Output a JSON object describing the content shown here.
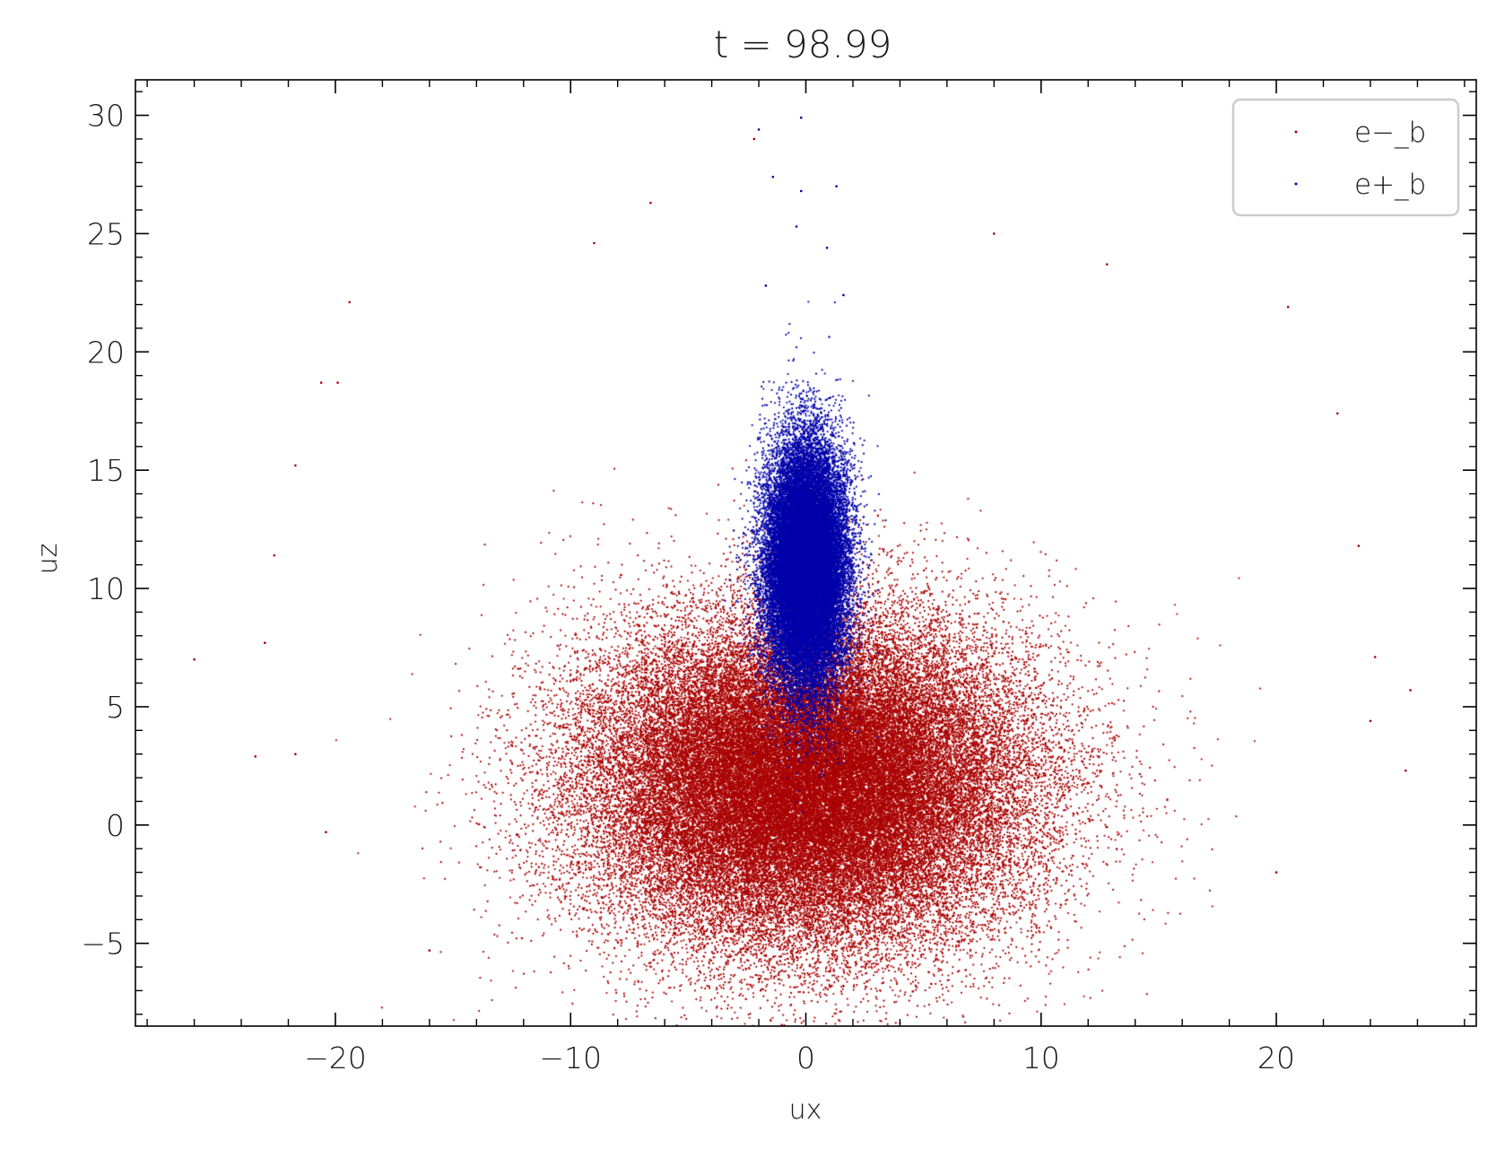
{
  "chart_data": {
    "type": "scatter",
    "title": "t = 98.99",
    "xlabel": "ux",
    "ylabel": "uz",
    "xlim": [
      -28.5,
      28.5
    ],
    "ylim": [
      -8.5,
      31.5
    ],
    "x_ticks": [
      -20,
      -10,
      0,
      10,
      20
    ],
    "x_tick_labels": [
      "−20",
      "−10",
      "0",
      "10",
      "20"
    ],
    "y_ticks": [
      -5,
      0,
      5,
      10,
      15,
      20,
      25,
      30
    ],
    "y_tick_labels": [
      "−5",
      "0",
      "5",
      "10",
      "15",
      "20",
      "25",
      "30"
    ],
    "x_minor_step": 2,
    "y_minor_step": 1,
    "grid": false,
    "legend_position": "top-right",
    "series": [
      {
        "name": "e−_b",
        "color": "#aa0000",
        "marker_size": 2.2,
        "distribution": {
          "kind": "gaussian-cloud",
          "n": 60000,
          "x_mean": 0.0,
          "x_std": 4.6,
          "y_mean": 1.8,
          "y_std": 3.4
        },
        "outliers": [
          {
            "x": -26.0,
            "y": 7.0
          },
          {
            "x": -23.4,
            "y": 2.9
          },
          {
            "x": -23.0,
            "y": 7.7
          },
          {
            "x": -22.6,
            "y": 11.4
          },
          {
            "x": -21.7,
            "y": 15.2
          },
          {
            "x": -21.7,
            "y": 3.0
          },
          {
            "x": -20.6,
            "y": 18.7
          },
          {
            "x": -20.4,
            "y": -0.3
          },
          {
            "x": -19.9,
            "y": 18.7
          },
          {
            "x": -19.4,
            "y": 22.1
          },
          {
            "x": -16.0,
            "y": -5.3
          },
          {
            "x": -9.0,
            "y": 24.6
          },
          {
            "x": -6.6,
            "y": 26.3
          },
          {
            "x": -2.2,
            "y": 29.0
          },
          {
            "x": -2.0,
            "y": -6.5
          },
          {
            "x": 1.6,
            "y": -6.8
          },
          {
            "x": 8.0,
            "y": 25.0
          },
          {
            "x": 12.8,
            "y": 23.7
          },
          {
            "x": 20.5,
            "y": 21.9
          },
          {
            "x": 20.0,
            "y": -2.0
          },
          {
            "x": 22.6,
            "y": 17.4
          },
          {
            "x": 23.5,
            "y": 11.8
          },
          {
            "x": 24.2,
            "y": 7.1
          },
          {
            "x": 25.7,
            "y": 5.7
          },
          {
            "x": 25.5,
            "y": 2.3
          },
          {
            "x": 24.0,
            "y": 4.4
          }
        ]
      },
      {
        "name": "e+_b",
        "color": "#0000aa",
        "marker_size": 2.2,
        "distribution": {
          "kind": "gaussian-cloud",
          "n": 30000,
          "x_mean": 0.0,
          "x_std": 0.85,
          "y_mean": 11.0,
          "y_std": 2.5
        },
        "outliers": [
          {
            "x": -2.0,
            "y": 29.4
          },
          {
            "x": -0.2,
            "y": 29.9
          },
          {
            "x": -1.4,
            "y": 27.4
          },
          {
            "x": 1.3,
            "y": 27.0
          },
          {
            "x": -0.2,
            "y": 26.8
          },
          {
            "x": -0.4,
            "y": 25.3
          },
          {
            "x": 0.9,
            "y": 24.4
          },
          {
            "x": -1.7,
            "y": 22.8
          },
          {
            "x": 1.6,
            "y": 22.4
          }
        ]
      }
    ]
  }
}
